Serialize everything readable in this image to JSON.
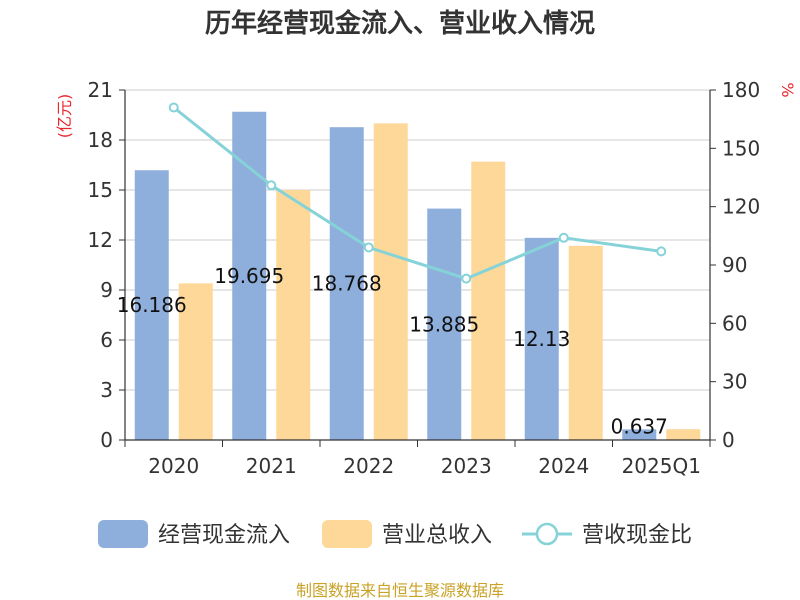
{
  "chart_data": {
    "type": "bar",
    "title": "历年经营现金流入、营业收入情况",
    "categories": [
      "2020",
      "2021",
      "2022",
      "2023",
      "2024",
      "2025Q1"
    ],
    "y_left": {
      "label": "(亿元)",
      "min": 0,
      "max": 21,
      "ticks": [
        0,
        3,
        6,
        9,
        12,
        15,
        18,
        21
      ]
    },
    "y_right": {
      "label": "%",
      "min": 0,
      "max": 180,
      "ticks": [
        0,
        30,
        60,
        90,
        120,
        150,
        180
      ]
    },
    "series": [
      {
        "name": "经营现金流入",
        "kind": "bar",
        "axis": "left",
        "color": "#8eaedb",
        "values": [
          16.186,
          19.695,
          18.768,
          13.885,
          12.13,
          0.637
        ],
        "labels": [
          "16.186",
          "19.695",
          "18.768",
          "13.885",
          "12.13",
          "0.637"
        ]
      },
      {
        "name": "营业总收入",
        "kind": "bar",
        "axis": "left",
        "color": "#fdd899",
        "values": [
          9.4,
          15.0,
          19.0,
          16.7,
          11.65,
          0.65
        ]
      },
      {
        "name": "营收现金比",
        "kind": "line",
        "axis": "right",
        "color": "#85d3d8",
        "values": [
          171,
          131,
          99,
          83,
          104,
          97
        ]
      }
    ],
    "grid": true,
    "legend_position": "bottom",
    "source": "制图数据来自恒生聚源数据库"
  }
}
